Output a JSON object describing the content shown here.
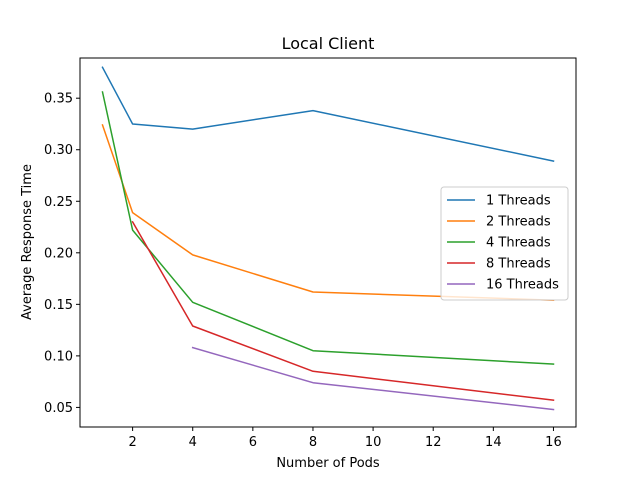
{
  "chart_data": {
    "type": "line",
    "title": "Local Client",
    "xlabel": "Number of Pods",
    "ylabel": "Average Response Time",
    "xlim": [
      0.25,
      16.75
    ],
    "ylim": [
      0.031,
      0.389
    ],
    "xticks": [
      2,
      4,
      6,
      8,
      10,
      12,
      14,
      16
    ],
    "xtick_labels": [
      "2",
      "4",
      "6",
      "8",
      "10",
      "12",
      "14",
      "16"
    ],
    "yticks": [
      0.05,
      0.1,
      0.15,
      0.2,
      0.25,
      0.3,
      0.35
    ],
    "ytick_labels": [
      "0.05",
      "0.10",
      "0.15",
      "0.20",
      "0.25",
      "0.30",
      "0.35"
    ],
    "grid": false,
    "legend_position": "center-right",
    "series": [
      {
        "name": "1 Threads",
        "color": "#1f77b4",
        "x": [
          1,
          2,
          4,
          8,
          16
        ],
        "y": [
          0.38,
          0.325,
          0.32,
          0.338,
          0.289
        ]
      },
      {
        "name": "2 Threads",
        "color": "#ff7f0e",
        "x": [
          1,
          2,
          4,
          8,
          16
        ],
        "y": [
          0.324,
          0.239,
          0.198,
          0.162,
          0.154
        ]
      },
      {
        "name": "4 Threads",
        "color": "#2ca02c",
        "x": [
          1,
          2,
          4,
          8,
          16
        ],
        "y": [
          0.356,
          0.222,
          0.152,
          0.105,
          0.092
        ]
      },
      {
        "name": "8 Threads",
        "color": "#d62728",
        "x": [
          2,
          4,
          8,
          16
        ],
        "y": [
          0.23,
          0.129,
          0.085,
          0.057
        ]
      },
      {
        "name": "16 Threads",
        "color": "#9467bd",
        "x": [
          4,
          8,
          16
        ],
        "y": [
          0.108,
          0.074,
          0.048
        ]
      }
    ]
  }
}
